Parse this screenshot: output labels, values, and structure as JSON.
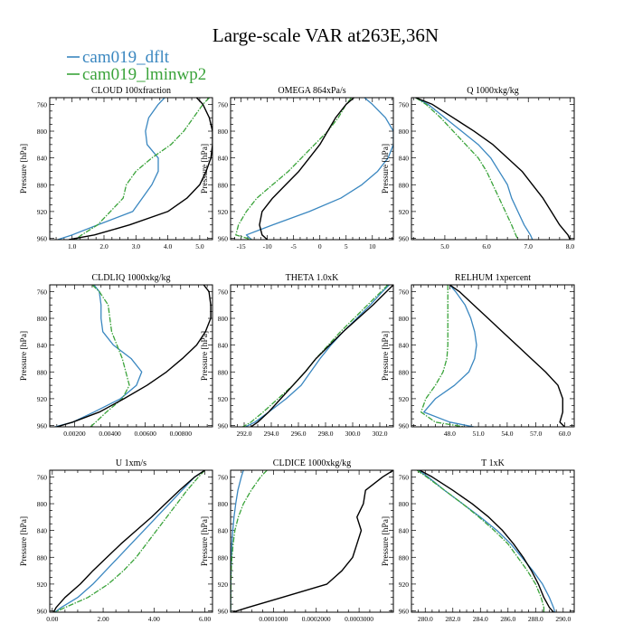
{
  "title": "Large-scale VAR at263E,36N",
  "legend": [
    {
      "name": "cam019_dflt",
      "color": "#3a87c0"
    },
    {
      "name": "cam019_lminwp2",
      "color": "#3aa33a"
    }
  ],
  "black_color": "#000000",
  "ylabel": "Pressure [hPa]",
  "pressure_levels": [
    750,
    760,
    780,
    800,
    820,
    840,
    860,
    880,
    900,
    920,
    940,
    955,
    962
  ],
  "y_ticks": [
    760,
    800,
    840,
    880,
    920,
    960
  ],
  "ylim": [
    750,
    962
  ],
  "chart_data": [
    {
      "type": "line",
      "title": "CLOUD 100xfraction",
      "xlim": [
        0.3,
        5.4
      ],
      "x_ticks": [
        1.0,
        2.0,
        3.0,
        4.0,
        5.0
      ],
      "x_tick_labels": [
        "1.0",
        "2.0",
        "3.0",
        "4.0",
        "5.0"
      ],
      "series": [
        {
          "name": "cam019_dflt",
          "values": [
            3.9,
            3.7,
            3.4,
            3.3,
            3.35,
            3.7,
            3.7,
            3.5,
            3.2,
            2.9,
            1.8,
            1.0,
            0.55
          ]
        },
        {
          "name": "cam019_lminwp2",
          "values": [
            5.3,
            5.1,
            4.8,
            4.5,
            4.1,
            3.5,
            3.0,
            2.7,
            2.6,
            2.2,
            1.8,
            1.3,
            1.1
          ]
        },
        {
          "name": "black",
          "values": [
            4.9,
            5.1,
            5.3,
            5.4,
            5.4,
            5.35,
            5.2,
            5.0,
            4.6,
            4.0,
            2.8,
            1.7,
            0.9
          ]
        }
      ]
    },
    {
      "type": "line",
      "title": "OMEGA 864xPa/s",
      "xlim": [
        -17,
        14
      ],
      "x_ticks": [
        -15,
        -10,
        -5,
        0,
        5,
        10
      ],
      "x_tick_labels": [
        "-15",
        "-10",
        "-5",
        "0",
        "5",
        "10"
      ],
      "series": [
        {
          "name": "cam019_dflt",
          "values": [
            8.5,
            10,
            12.5,
            14,
            14,
            13,
            11,
            8,
            4,
            -2,
            -9,
            -14,
            -13
          ]
        },
        {
          "name": "cam019_lminwp2",
          "values": [
            6,
            5,
            3.5,
            1.5,
            -1,
            -3.5,
            -6,
            -9,
            -12,
            -14,
            -15.5,
            -16,
            -13
          ]
        },
        {
          "name": "black",
          "values": [
            6.5,
            5,
            3,
            1.5,
            0,
            -2,
            -4,
            -6.5,
            -9,
            -11,
            -11.5,
            -11,
            -10
          ]
        }
      ]
    },
    {
      "type": "line",
      "title": "Q 1000xkg/kg",
      "xlim": [
        4.2,
        8.1
      ],
      "x_ticks": [
        5.0,
        6.0,
        7.0,
        8.0
      ],
      "x_tick_labels": [
        "5.0",
        "6.0",
        "7.0",
        "8.0"
      ],
      "series": [
        {
          "name": "cam019_dflt",
          "values": [
            4.3,
            4.6,
            5.0,
            5.4,
            5.8,
            6.1,
            6.3,
            6.5,
            6.6,
            6.75,
            6.9,
            7.05,
            7.1
          ]
        },
        {
          "name": "cam019_lminwp2",
          "values": [
            4.3,
            4.55,
            4.9,
            5.2,
            5.5,
            5.8,
            6.0,
            6.15,
            6.3,
            6.45,
            6.6,
            6.7,
            6.75
          ]
        },
        {
          "name": "black",
          "values": [
            4.3,
            4.7,
            5.2,
            5.7,
            6.15,
            6.5,
            6.85,
            7.1,
            7.35,
            7.55,
            7.75,
            7.95,
            8.0
          ]
        }
      ]
    },
    {
      "type": "line",
      "title": "CLDLIQ 1000xkg/kg",
      "xlim": [
        0.0006,
        0.0098
      ],
      "x_ticks": [
        0.002,
        0.004,
        0.006,
        0.008
      ],
      "x_tick_labels": [
        "0.00200",
        "0.00400",
        "0.00600",
        "0.00800"
      ],
      "series": [
        {
          "name": "cam019_dflt",
          "values": [
            0.0031,
            0.0034,
            0.0035,
            0.0035,
            0.0036,
            0.0042,
            0.0052,
            0.0058,
            0.0055,
            0.0046,
            0.0031,
            0.0019,
            0.0009
          ]
        },
        {
          "name": "cam019_lminwp2",
          "values": [
            0.003,
            0.0034,
            0.0039,
            0.004,
            0.0041,
            0.0044,
            0.0047,
            0.0049,
            0.0051,
            0.0047,
            0.0038,
            0.0032,
            0.0029
          ]
        },
        {
          "name": "black",
          "values": [
            0.0093,
            0.0096,
            0.0097,
            0.0097,
            0.0094,
            0.0089,
            0.0081,
            0.0072,
            0.0061,
            0.0048,
            0.0034,
            0.0019,
            0.001
          ]
        }
      ]
    },
    {
      "type": "line",
      "title": "THETA 1.0xK",
      "xlim": [
        291,
        303
      ],
      "x_ticks": [
        292,
        294,
        296,
        298,
        300,
        302
      ],
      "x_tick_labels": [
        "292.0",
        "294.0",
        "296.0",
        "298.0",
        "300.0",
        "302.0"
      ],
      "series": [
        {
          "name": "cam019_dflt",
          "values": [
            302.7,
            302.2,
            301.3,
            300.3,
            299.3,
            298.4,
            297.6,
            296.9,
            296.2,
            295.1,
            293.8,
            292.8,
            292.1
          ]
        },
        {
          "name": "cam019_lminwp2",
          "values": [
            302.6,
            302.1,
            301.1,
            300.1,
            299.1,
            298.2,
            297.3,
            296.5,
            295.6,
            294.5,
            293.4,
            292.5,
            291.9
          ]
        },
        {
          "name": "black",
          "values": [
            303.0,
            302.5,
            301.5,
            300.4,
            299.3,
            298.3,
            297.3,
            296.5,
            295.6,
            294.7,
            293.8,
            293.0,
            292.5
          ]
        }
      ]
    },
    {
      "type": "line",
      "title": "RELHUM 1xpercent",
      "xlim": [
        44,
        61
      ],
      "x_ticks": [
        48,
        51,
        54,
        57,
        60
      ],
      "x_tick_labels": [
        "48.0",
        "51.0",
        "54.0",
        "57.0",
        "60.0"
      ],
      "series": [
        {
          "name": "cam019_dflt",
          "values": [
            48.0,
            48.6,
            49.6,
            50.2,
            50.6,
            50.8,
            50.6,
            50.0,
            48.5,
            46.5,
            45.3,
            48.0,
            50.5
          ]
        },
        {
          "name": "cam019_lminwp2",
          "values": [
            47.8,
            47.8,
            47.8,
            47.8,
            47.8,
            47.8,
            47.7,
            47.3,
            46.5,
            45.5,
            45.0,
            46.5,
            49.5
          ]
        },
        {
          "name": "black",
          "values": [
            48.0,
            49.0,
            50.5,
            52.0,
            53.5,
            55.0,
            56.5,
            58.0,
            59.3,
            59.8,
            59.8,
            59.5,
            60.0
          ]
        }
      ]
    },
    {
      "type": "line",
      "title": "U 1xm/s",
      "xlim": [
        -0.1,
        6.3
      ],
      "x_ticks": [
        0.0,
        2.0,
        4.0,
        6.0
      ],
      "x_tick_labels": [
        "0.00",
        "2.00",
        "4.00",
        "6.00"
      ],
      "series": [
        {
          "name": "cam019_dflt",
          "values": [
            6.0,
            5.6,
            5.1,
            4.6,
            4.1,
            3.6,
            3.1,
            2.6,
            2.1,
            1.6,
            1.0,
            0.35,
            0.1
          ]
        },
        {
          "name": "cam019_lminwp2",
          "values": [
            6.0,
            5.75,
            5.3,
            4.9,
            4.5,
            4.1,
            3.7,
            3.3,
            2.8,
            2.2,
            1.4,
            0.5,
            0.1
          ]
        },
        {
          "name": "black",
          "values": [
            6.0,
            5.6,
            5.0,
            4.45,
            3.9,
            3.3,
            2.7,
            2.15,
            1.6,
            1.1,
            0.5,
            0.15,
            0.05
          ]
        }
      ]
    },
    {
      "type": "line",
      "title": "CLDICE 1000xkg/kg",
      "xlim": [
        0,
        0.00038
      ],
      "x_ticks": [
        0.0001,
        0.0002,
        0.0003
      ],
      "x_tick_labels": [
        "0.0001000",
        "0.0002000",
        "0.0003000"
      ],
      "series": [
        {
          "name": "cam019_dflt",
          "values": [
            3e-05,
            2.5e-05,
            1.7e-05,
            1.2e-05,
            8e-06,
            5e-06,
            3e-06,
            2e-06,
            1e-06,
            5e-07,
            3e-07,
            2e-07,
            1e-07
          ]
        },
        {
          "name": "cam019_lminwp2",
          "values": [
            8.5e-05,
            7e-05,
            4.8e-05,
            3e-05,
            1.8e-05,
            1e-05,
            6e-06,
            3e-06,
            1.5e-06,
            8e-07,
            4e-07,
            2e-07,
            1e-07
          ]
        },
        {
          "name": "black",
          "values": [
            0.00038,
            0.000355,
            0.000315,
            0.00031,
            0.000295,
            0.000305,
            0.000295,
            0.000285,
            0.00026,
            0.000225,
            0.00012,
            4e-05,
            5e-06
          ]
        }
      ]
    },
    {
      "type": "line",
      "title": "T 1xK",
      "xlim": [
        279,
        290.8
      ],
      "x_ticks": [
        280,
        282,
        284,
        286,
        288,
        290
      ],
      "x_tick_labels": [
        "280.0",
        "282.0",
        "284.0",
        "286.0",
        "288.0",
        "290.0"
      ],
      "series": [
        {
          "name": "cam019_dflt",
          "values": [
            279.5,
            280.2,
            281.4,
            282.7,
            284.0,
            285.2,
            286.2,
            287.0,
            287.8,
            288.5,
            289.0,
            289.3,
            289.4
          ]
        },
        {
          "name": "cam019_lminwp2",
          "values": [
            279.4,
            280.1,
            281.4,
            282.7,
            283.9,
            285.0,
            286.0,
            286.7,
            287.4,
            288.0,
            288.4,
            288.6,
            288.6
          ]
        },
        {
          "name": "black",
          "values": [
            279.6,
            280.5,
            282.0,
            283.4,
            284.6,
            285.6,
            286.4,
            287.1,
            287.7,
            288.2,
            288.6,
            289.0,
            289.3
          ]
        }
      ]
    }
  ]
}
